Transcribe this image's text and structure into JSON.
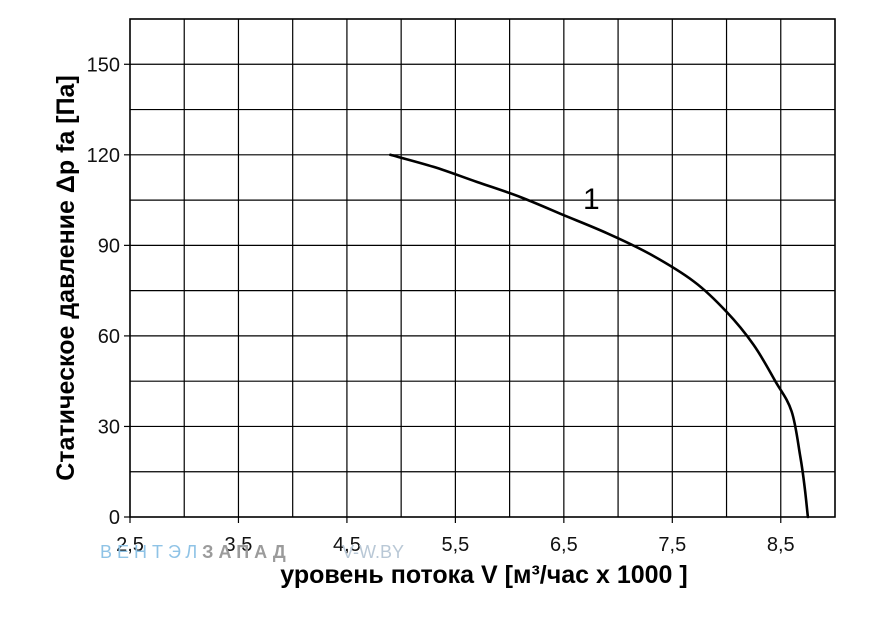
{
  "chart_data": {
    "type": "line",
    "title": "",
    "xlabel": "уровень потока  V [м³/час x 1000 ]",
    "ylabel": "Статическое давление  Δp fa [Па]",
    "xlim": [
      2.5,
      9.0
    ],
    "ylim": [
      0,
      165
    ],
    "x_ticks": [
      "2,5",
      "3,5",
      "4,5",
      "5,5",
      "6,5",
      "7,5",
      "8,5"
    ],
    "x_tick_values": [
      2.5,
      3.5,
      4.5,
      5.5,
      6.5,
      7.5,
      8.5
    ],
    "y_ticks": [
      "0",
      "30",
      "60",
      "90",
      "120",
      "150"
    ],
    "y_tick_values": [
      0,
      30,
      60,
      90,
      120,
      150
    ],
    "x_minor_gridlines": [
      3.0,
      4.0,
      5.0,
      6.0,
      7.0,
      8.0
    ],
    "y_minor_gridlines": [
      15,
      45,
      75,
      105,
      135,
      165
    ],
    "grid": true,
    "series": [
      {
        "name": "1",
        "x": [
          4.9,
          5.3,
          5.7,
          6.1,
          6.5,
          6.9,
          7.3,
          7.7,
          8.0,
          8.25,
          8.45,
          8.6,
          8.68,
          8.72,
          8.75
        ],
        "y": [
          120,
          116,
          111,
          106,
          100,
          94,
          87,
          78,
          68,
          57,
          45,
          35,
          20,
          10,
          0
        ]
      }
    ],
    "annotations": [
      {
        "text": "1",
        "x": 6.75,
        "y": 106
      }
    ]
  },
  "watermark": {
    "part1": "ВЕНТЭЛ",
    "part2": "ЗАПАД",
    "url": "V-W.BY"
  }
}
